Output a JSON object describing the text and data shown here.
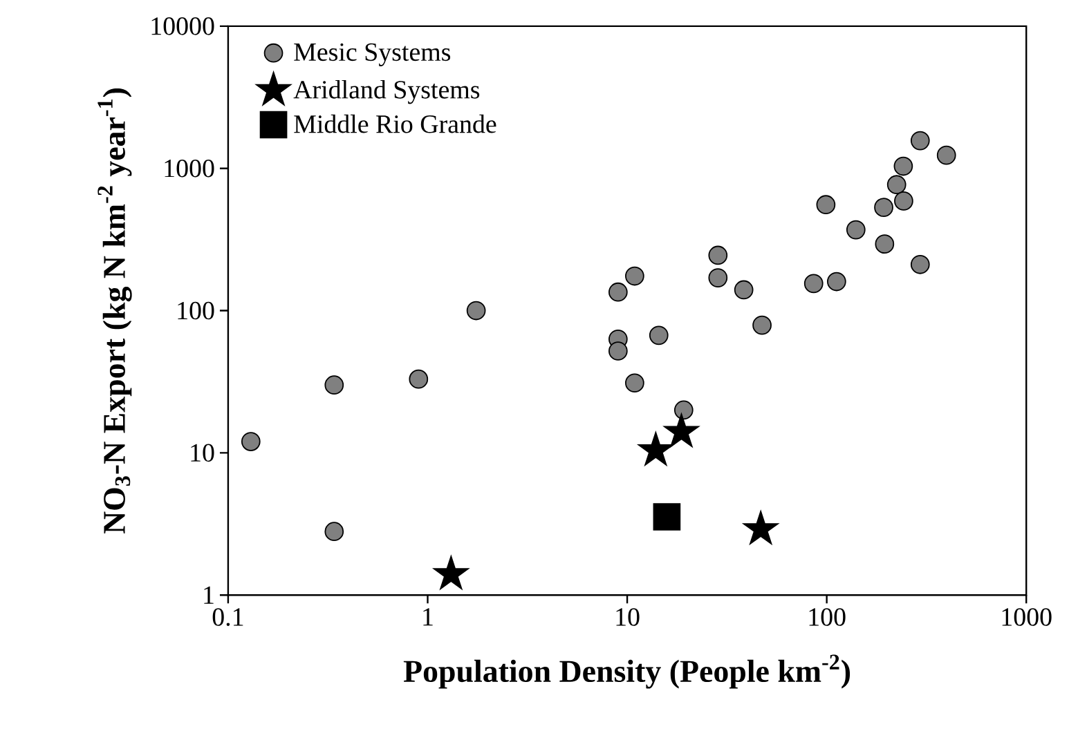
{
  "chart_data": {
    "type": "scatter",
    "xlabel": "Population Density (People km$^{-2}$)",
    "ylabel": "NO$_{3}$-N Export (kg N km$^{-2}$ year$^{-1}$)",
    "log": "xy",
    "xlim": [
      0.1,
      1000
    ],
    "ylim": [
      1,
      10000
    ],
    "xticks": [
      0.1,
      1,
      10,
      100,
      1000
    ],
    "yticks": [
      1,
      10,
      100,
      1000,
      10000
    ],
    "grid": false,
    "legend": "top left",
    "series": [
      {
        "name": "Mesic Systems",
        "color": "#808080",
        "marker": "circle",
        "x": [
          0.13,
          0.34,
          0.34,
          0.9,
          1.75,
          9,
          9,
          9,
          10.9,
          14.4,
          10.9,
          19.2,
          28.5,
          28.5,
          38.4,
          47.4,
          86,
          112,
          99,
          140,
          195,
          193,
          224,
          243,
          242,
          294,
          398,
          294
        ],
        "values": [
          12,
          30,
          2.8,
          33,
          100,
          135,
          63,
          52,
          175,
          67,
          31,
          20,
          245,
          170,
          140,
          79,
          155,
          160,
          556,
          370,
          294,
          532,
          769,
          590,
          1036,
          1566,
          1238,
          211
        ]
      },
      {
        "name": "Aridland Systems",
        "color": "#000000",
        "marker": "star",
        "x": [
          1.31,
          13.9,
          18.7,
          46.7
        ],
        "values": [
          1.4,
          10.4,
          14,
          2.9
        ]
      },
      {
        "name": "Middle Rio Grande",
        "color": "#000000",
        "marker": "square",
        "x": [
          15.8
        ],
        "values": [
          3.55
        ]
      }
    ]
  }
}
